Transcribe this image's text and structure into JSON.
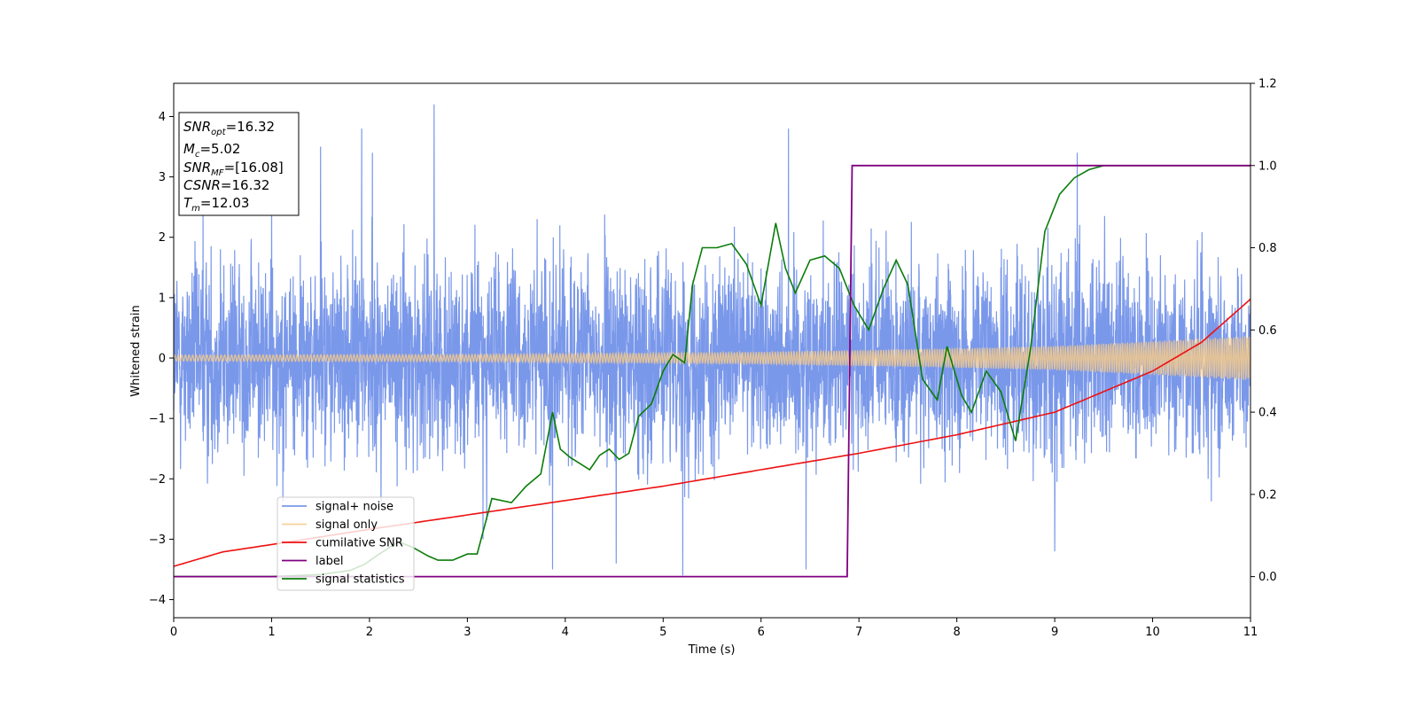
{
  "chart_data": {
    "type": "line",
    "xlabel": "Time (s)",
    "ylabel": "Whitened strain",
    "xlim": [
      0,
      11
    ],
    "ylim": [
      -4.3,
      4.55
    ],
    "y2lim": [
      -0.1,
      1.2
    ],
    "x_ticks": [
      "0",
      "1",
      "2",
      "3",
      "4",
      "5",
      "6",
      "7",
      "8",
      "9",
      "10",
      "11"
    ],
    "y_ticks": [
      "−4",
      "−3",
      "−2",
      "−1",
      "0",
      "1",
      "2",
      "3",
      "4"
    ],
    "y2_ticks": [
      "0.0",
      "0.2",
      "0.4",
      "0.6",
      "0.8",
      "1.0",
      "1.2"
    ],
    "grid": false,
    "legend_position": "lower-left",
    "info_box": [
      {
        "base": "SNR",
        "sub": "opt",
        "value": "=16.32"
      },
      {
        "base": "M",
        "sub": "c",
        "value": "=5.02"
      },
      {
        "base": "SNR",
        "sub": "MF",
        "value": "=[16.08]"
      },
      {
        "base": "CSNR",
        "sub": "",
        "value": "=16.32"
      },
      {
        "base": "T",
        "sub": "m",
        "value": "=12.03"
      }
    ],
    "series": [
      {
        "name": "signal+ noise",
        "axis": "left",
        "color": "#6f8fe8",
        "style": "band",
        "noise_std": 0.8,
        "spike_max": 4.2,
        "notable_peaks": [
          [
            0.3,
            2.6
          ],
          [
            1.0,
            2.5
          ],
          [
            1.5,
            3.5
          ],
          [
            1.92,
            3.8
          ],
          [
            2.03,
            3.4
          ],
          [
            2.66,
            4.2
          ],
          [
            3.16,
            -3.0
          ],
          [
            3.87,
            -3.5
          ],
          [
            4.52,
            -3.4
          ],
          [
            5.2,
            -3.6
          ],
          [
            6.28,
            3.8
          ],
          [
            6.46,
            -3.5
          ],
          [
            9.23,
            3.4
          ],
          [
            9.0,
            -3.2
          ]
        ]
      },
      {
        "name": "signal only",
        "axis": "left",
        "color": "#f5c98a",
        "style": "chirp",
        "amplitude": [
          [
            0,
            0.05
          ],
          [
            3,
            0.06
          ],
          [
            6,
            0.1
          ],
          [
            8,
            0.16
          ],
          [
            9,
            0.2
          ],
          [
            10,
            0.28
          ],
          [
            11,
            0.37
          ]
        ]
      },
      {
        "name": "cumilative SNR",
        "axis": "right",
        "color": "#ee1111",
        "style": "line",
        "x": [
          0,
          0.5,
          1,
          2,
          3,
          4,
          5,
          6,
          7,
          8,
          9,
          10,
          10.5,
          11
        ],
        "y": [
          0.025,
          0.06,
          0.078,
          0.115,
          0.15,
          0.185,
          0.22,
          0.26,
          0.3,
          0.345,
          0.4,
          0.5,
          0.57,
          0.675
        ]
      },
      {
        "name": "label",
        "axis": "right",
        "color": "#800080",
        "style": "line",
        "x": [
          0,
          6.88,
          6.93,
          11
        ],
        "y": [
          0.0,
          0.0,
          1.0,
          1.0
        ]
      },
      {
        "name": "signal statistics",
        "axis": "right",
        "color": "#0a7d0a",
        "style": "line",
        "x": [
          0,
          0.5,
          1,
          1.5,
          1.8,
          1.95,
          2.1,
          2.3,
          2.45,
          2.6,
          2.7,
          2.85,
          3.0,
          3.1,
          3.25,
          3.45,
          3.6,
          3.75,
          3.87,
          3.95,
          4.05,
          4.15,
          4.25,
          4.35,
          4.45,
          4.55,
          4.65,
          4.75,
          4.88,
          5.0,
          5.1,
          5.22,
          5.3,
          5.4,
          5.55,
          5.7,
          5.85,
          6.0,
          6.15,
          6.25,
          6.35,
          6.5,
          6.65,
          6.8,
          6.95,
          7.1,
          7.25,
          7.38,
          7.5,
          7.65,
          7.8,
          7.9,
          8.05,
          8.15,
          8.3,
          8.45,
          8.6,
          8.75,
          8.9,
          9.05,
          9.2,
          9.35,
          9.5,
          9.8,
          10.2,
          10.6,
          11
        ],
        "y": [
          0.0,
          0.0,
          0.0,
          0.005,
          0.015,
          0.03,
          0.055,
          0.085,
          0.07,
          0.05,
          0.04,
          0.04,
          0.055,
          0.055,
          0.19,
          0.18,
          0.22,
          0.25,
          0.4,
          0.31,
          0.29,
          0.275,
          0.26,
          0.295,
          0.31,
          0.285,
          0.3,
          0.39,
          0.42,
          0.5,
          0.54,
          0.52,
          0.71,
          0.8,
          0.8,
          0.81,
          0.76,
          0.66,
          0.86,
          0.75,
          0.69,
          0.77,
          0.78,
          0.75,
          0.66,
          0.6,
          0.7,
          0.77,
          0.71,
          0.48,
          0.43,
          0.56,
          0.44,
          0.4,
          0.5,
          0.45,
          0.33,
          0.55,
          0.84,
          0.93,
          0.97,
          0.99,
          1.0,
          1.0,
          1.0,
          1.0,
          1.0
        ]
      }
    ]
  }
}
